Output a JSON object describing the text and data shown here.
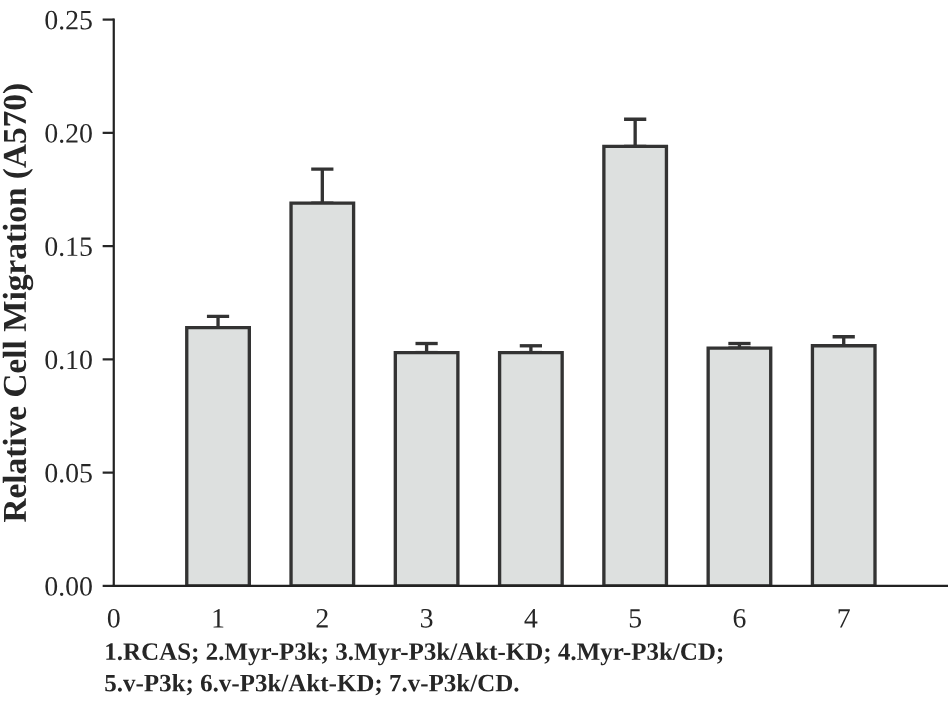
{
  "chart_data": {
    "type": "bar",
    "ylabel": "Relative Cell Migration (A570)",
    "x": [
      1,
      2,
      3,
      4,
      5,
      6,
      7
    ],
    "values": [
      0.114,
      0.169,
      0.103,
      0.103,
      0.194,
      0.105,
      0.106
    ],
    "errors": [
      [
        0.114,
        0.119
      ],
      [
        0.169,
        0.184
      ],
      [
        0.103,
        0.107
      ],
      [
        0.103,
        0.106
      ],
      [
        0.194,
        0.206
      ],
      [
        0.105,
        0.107
      ],
      [
        0.106,
        0.11
      ]
    ],
    "color": "#dde0df",
    "xlim": [
      0,
      8
    ],
    "xticks": [
      0,
      1,
      2,
      3,
      4,
      5,
      6,
      7
    ],
    "ylim": [
      0,
      0.25
    ],
    "yticks": [
      {
        "value": 0,
        "label": "0.00"
      },
      {
        "value": 0.05,
        "label": "0.05"
      },
      {
        "value": 0.1,
        "label": "0.10"
      },
      {
        "value": 0.15,
        "label": "0.15"
      },
      {
        "value": 0.2,
        "label": "0.20"
      },
      {
        "value": 0.25,
        "label": "0.25"
      }
    ],
    "grid": false,
    "annotations": [
      "1.RCAS; 2.Myr-P3k; 3.Myr-P3k/Akt-KD; 4.Myr-P3k/CD;\n5.v-P3k; 6.v-P3k/Akt-KD; 7.v-P3k/CD."
    ]
  }
}
